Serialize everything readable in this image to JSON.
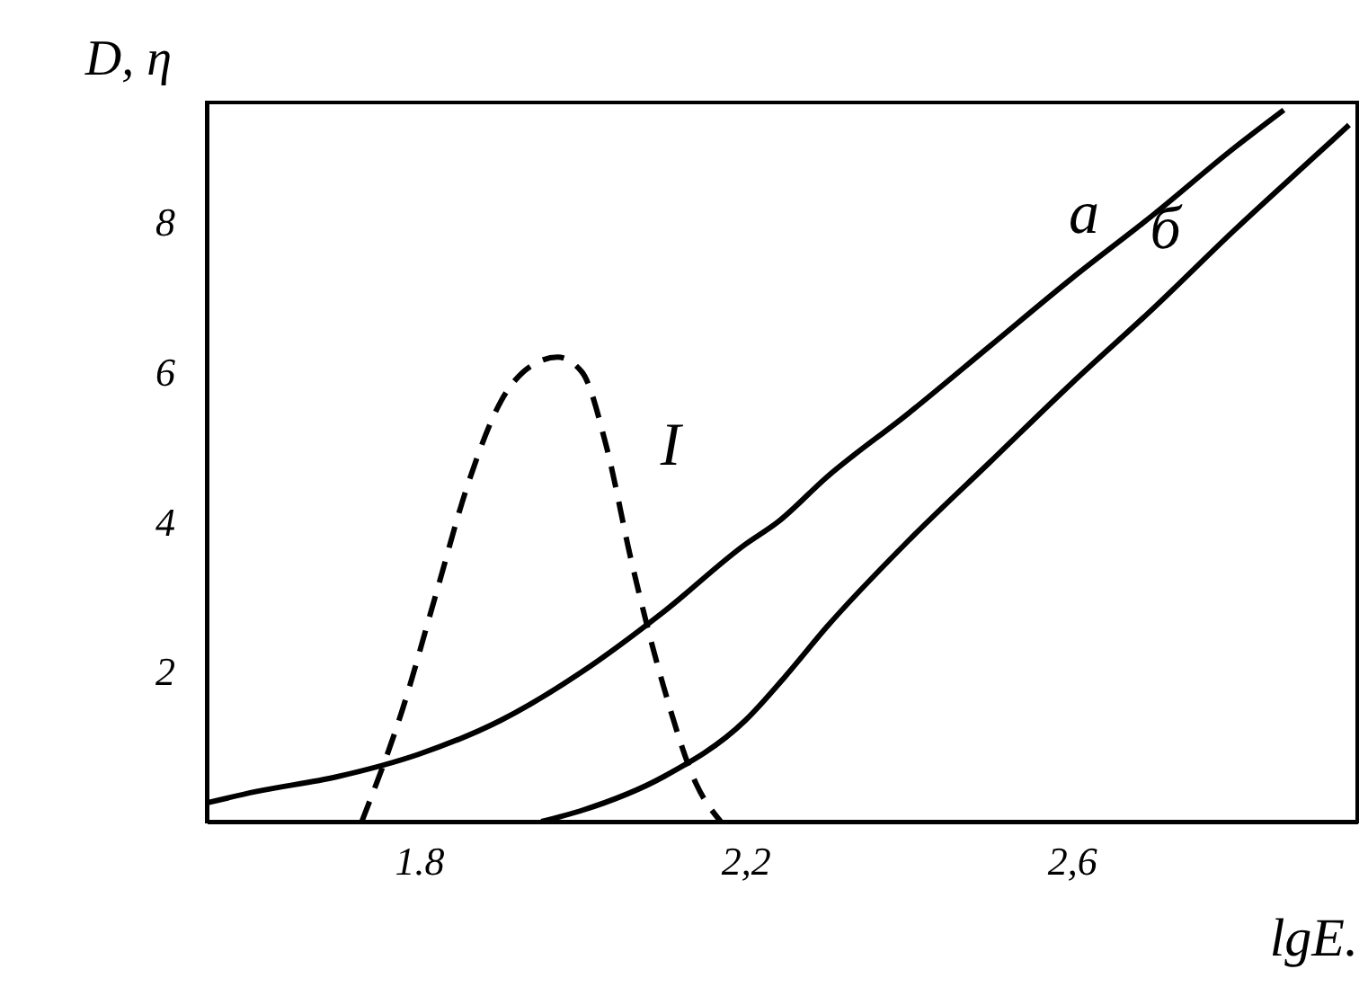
{
  "chart_data": {
    "type": "line",
    "xlabel": "lgE.",
    "ylabel": "D, η",
    "xlim": [
      1.54,
      2.95
    ],
    "ylim": [
      0,
      9.6
    ],
    "xticks": [
      1.8,
      {
        "value": 2.2,
        "label": "2,2"
      },
      {
        "value": 2.6,
        "label": "2,6"
      }
    ],
    "yticks": [
      2,
      4,
      6,
      8
    ],
    "grid": false,
    "series": [
      {
        "name": "а",
        "color": "#000000",
        "line_style": "solid",
        "x": [
          1.54,
          1.6,
          1.7,
          1.8,
          1.9,
          2.0,
          2.1,
          2.2,
          2.24,
          2.3,
          2.4,
          2.5,
          2.6,
          2.7,
          2.8,
          2.86
        ],
        "values": [
          0.25,
          0.4,
          0.6,
          0.9,
          1.35,
          2.0,
          2.8,
          3.7,
          4.0,
          4.6,
          5.45,
          6.35,
          7.25,
          8.1,
          9.0,
          9.5
        ]
      },
      {
        "name": "б",
        "color": "#000000",
        "line_style": "solid",
        "x": [
          1.95,
          2.0,
          2.1,
          2.2,
          2.25,
          2.3,
          2.4,
          2.5,
          2.6,
          2.7,
          2.8,
          2.9,
          2.94
        ],
        "values": [
          0,
          0.15,
          0.6,
          1.35,
          1.95,
          2.6,
          3.75,
          4.8,
          5.85,
          6.85,
          7.9,
          8.9,
          9.3
        ]
      },
      {
        "name": "I",
        "color": "#000000",
        "line_style": "dashed",
        "x": [
          1.73,
          1.78,
          1.82,
          1.86,
          1.9,
          1.94,
          1.97,
          2.0,
          2.03,
          2.06,
          2.1,
          2.14,
          2.17
        ],
        "values": [
          0,
          1.5,
          3.0,
          4.5,
          5.6,
          6.1,
          6.2,
          6.0,
          5.0,
          3.5,
          1.8,
          0.5,
          0
        ]
      }
    ]
  }
}
